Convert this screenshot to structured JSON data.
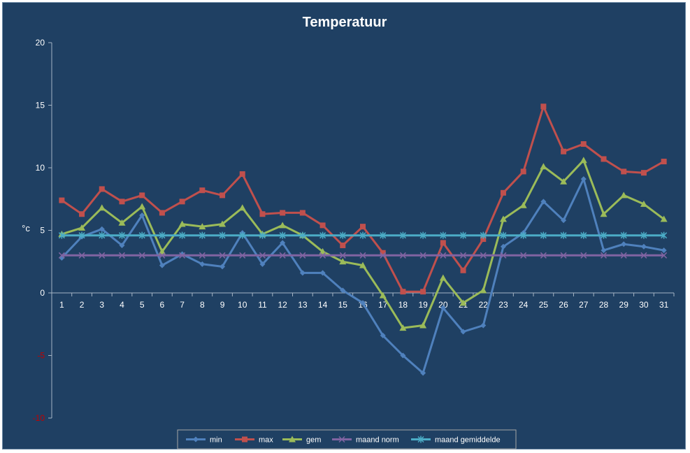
{
  "chart_data": {
    "type": "line",
    "title": "Temperatuur",
    "xlabel": "",
    "ylabel": "°c",
    "ylim": [
      -10,
      20
    ],
    "yticks": [
      20,
      15,
      10,
      5,
      0,
      -5,
      -10
    ],
    "grid": false,
    "legend_position": "bottom",
    "categories": [
      "1",
      "2",
      "3",
      "4",
      "5",
      "6",
      "7",
      "8",
      "9",
      "10",
      "11",
      "12",
      "13",
      "14",
      "15",
      "16",
      "17",
      "18",
      "19",
      "20",
      "21",
      "22",
      "23",
      "24",
      "25",
      "26",
      "27",
      "28",
      "29",
      "30",
      "31"
    ],
    "series": [
      {
        "name": "min",
        "color": "#4f81bd",
        "marker": "diamond",
        "values": [
          2.8,
          4.5,
          5.1,
          3.8,
          6.2,
          2.2,
          3.1,
          2.3,
          2.1,
          4.8,
          2.3,
          4.0,
          1.6,
          1.6,
          0.2,
          -0.8,
          -3.4,
          -5.0,
          -6.4,
          -1.2,
          -3.1,
          -2.6,
          3.7,
          4.8,
          7.3,
          5.8,
          9.1,
          3.4,
          3.9,
          3.7,
          3.4
        ]
      },
      {
        "name": "max",
        "color": "#c0504d",
        "marker": "square",
        "values": [
          7.4,
          6.3,
          8.3,
          7.3,
          7.8,
          6.4,
          7.3,
          8.2,
          7.8,
          9.5,
          6.3,
          6.4,
          6.4,
          5.4,
          3.8,
          5.3,
          3.2,
          0.1,
          0.1,
          4.0,
          1.8,
          4.3,
          8.0,
          9.7,
          14.9,
          11.3,
          11.9,
          10.7,
          9.7,
          9.6,
          10.5
        ]
      },
      {
        "name": "gem",
        "color": "#9bbb59",
        "marker": "triangle",
        "values": [
          4.7,
          5.2,
          6.8,
          5.6,
          6.9,
          3.3,
          5.5,
          5.3,
          5.5,
          6.8,
          4.7,
          5.4,
          4.6,
          3.3,
          2.5,
          2.2,
          -0.2,
          -2.8,
          -2.6,
          1.2,
          -0.8,
          0.2,
          5.9,
          7.0,
          10.1,
          8.9,
          10.6,
          6.3,
          7.8,
          7.1,
          5.9
        ]
      },
      {
        "name": "maand norm",
        "color": "#8064a2",
        "marker": "x",
        "values": [
          3.0,
          3.0,
          3.0,
          3.0,
          3.0,
          3.0,
          3.0,
          3.0,
          3.0,
          3.0,
          3.0,
          3.0,
          3.0,
          3.0,
          3.0,
          3.0,
          3.0,
          3.0,
          3.0,
          3.0,
          3.0,
          3.0,
          3.0,
          3.0,
          3.0,
          3.0,
          3.0,
          3.0,
          3.0,
          3.0,
          3.0
        ]
      },
      {
        "name": "maand gemiddelde",
        "color": "#4bacc6",
        "marker": "star",
        "values": [
          4.6,
          4.6,
          4.6,
          4.6,
          4.6,
          4.6,
          4.6,
          4.6,
          4.6,
          4.6,
          4.6,
          4.6,
          4.6,
          4.6,
          4.6,
          4.6,
          4.6,
          4.6,
          4.6,
          4.6,
          4.6,
          4.6,
          4.6,
          4.6,
          4.6,
          4.6,
          4.6,
          4.6,
          4.6,
          4.6,
          4.6
        ]
      }
    ]
  },
  "colors": {
    "background": "#1f4063",
    "axis": "#a6b5c4",
    "tick_text": "#ffffff",
    "negative_tick_text": "#c00000",
    "legend_border": "#a6a6a6"
  }
}
